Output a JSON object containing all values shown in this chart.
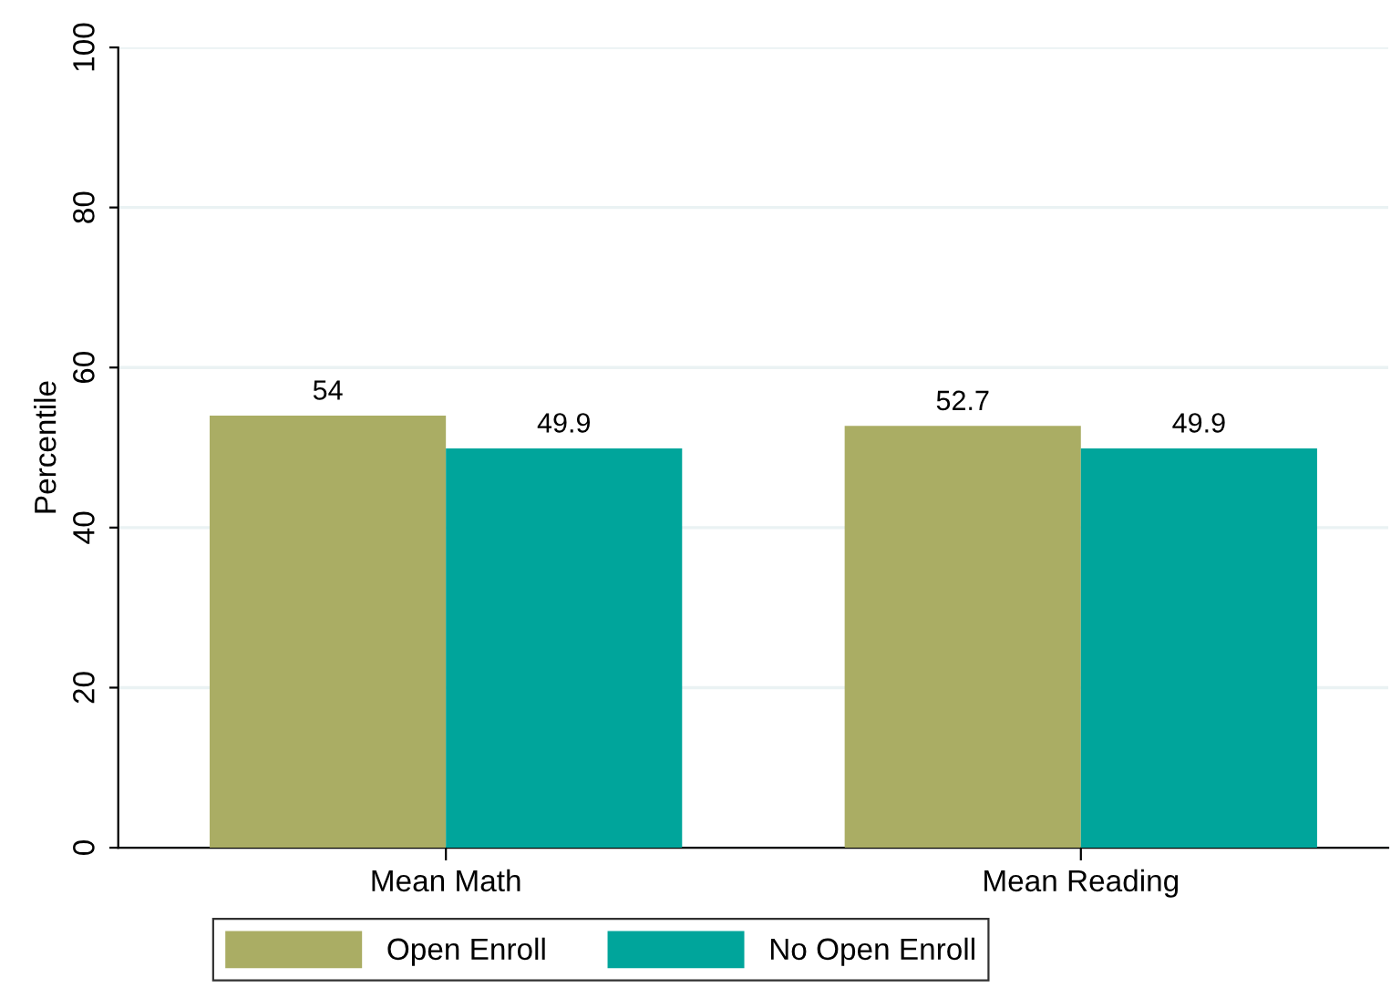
{
  "chart_data": {
    "type": "bar",
    "ylabel": "Percentile",
    "categories": [
      "Mean Math",
      "Mean Reading"
    ],
    "series": [
      {
        "name": "Open Enroll",
        "color": "#aaad64",
        "values": [
          54,
          52.7
        ]
      },
      {
        "name": "No Open Enroll",
        "color": "#00a59b",
        "values": [
          49.9,
          49.9
        ]
      }
    ],
    "ylim": [
      0,
      100
    ],
    "yticks": [
      0,
      20,
      40,
      60,
      80,
      100
    ],
    "grid": "y",
    "legend": "bottom",
    "data_labels": true
  }
}
